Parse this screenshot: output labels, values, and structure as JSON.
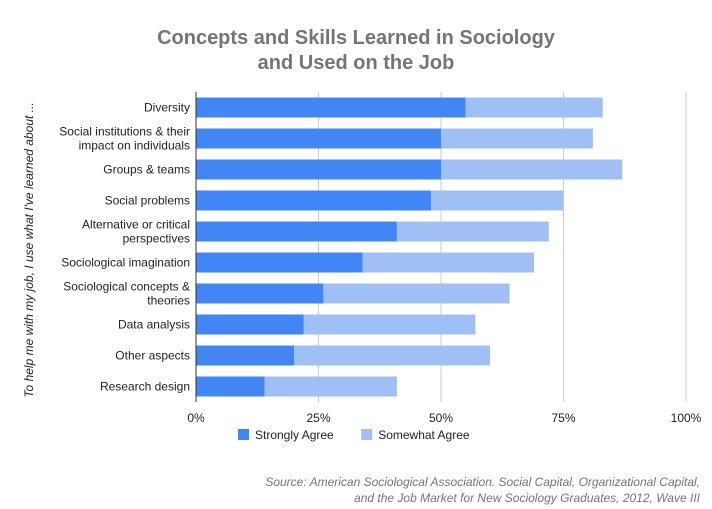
{
  "chart_data": {
    "type": "bar",
    "orientation": "horizontal",
    "stacked": true,
    "title_lines": [
      "Concepts and Skills Learned in Sociology",
      "and Used on the Job"
    ],
    "ylabel": "To help me with my job, I use what I've learned about ...",
    "categories": [
      [
        "Diversity"
      ],
      [
        "Social institutions & their",
        "impact on individuals"
      ],
      [
        "Groups & teams"
      ],
      [
        "Social problems"
      ],
      [
        "Alternative or critical",
        "perspectives"
      ],
      [
        "Sociological imagination"
      ],
      [
        "Sociological concepts &",
        "theories"
      ],
      [
        "Data analysis"
      ],
      [
        "Other aspects"
      ],
      [
        "Research design"
      ]
    ],
    "series": [
      {
        "name": "Strongly Agree",
        "color": "#4285f4",
        "values": [
          55,
          50,
          50,
          48,
          41,
          34,
          26,
          22,
          20,
          14
        ]
      },
      {
        "name": "Somewhat Agree",
        "color": "#a0c0f5",
        "values": [
          28,
          31,
          37,
          27,
          31,
          35,
          38,
          35,
          40,
          27
        ]
      }
    ],
    "xlim": [
      0,
      100
    ],
    "x_ticks": [
      0,
      25,
      50,
      75,
      100
    ],
    "x_tick_labels": [
      "0%",
      "25%",
      "50%",
      "75%",
      "100%"
    ],
    "gridlines": true,
    "legend_position": "bottom"
  },
  "source_lines": [
    "Source: American Sociological Association. Social Capital, Organizational Capital,",
    "and the Job Market for New Sociology Graduates, 2012, Wave III"
  ]
}
